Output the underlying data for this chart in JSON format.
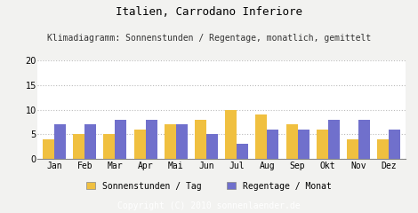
{
  "title": "Italien, Carrodano Inferiore",
  "subtitle": "Klimadiagramm: Sonnenstunden / Regentage, monatlich, gemittelt",
  "months": [
    "Jan",
    "Feb",
    "Mar",
    "Apr",
    "Mai",
    "Jun",
    "Jul",
    "Aug",
    "Sep",
    "Okt",
    "Nov",
    "Dez"
  ],
  "sonnenstunden": [
    4,
    5,
    5,
    6,
    7,
    8,
    10,
    9,
    7,
    6,
    4,
    4
  ],
  "regentage": [
    7,
    7,
    8,
    8,
    7,
    5,
    3,
    6,
    6,
    8,
    8,
    6
  ],
  "bar_color_sonne": "#F0C040",
  "bar_color_regen": "#7070CC",
  "background_color": "#F2F2F0",
  "plot_bg_color": "#FFFFFF",
  "footer_bg_color": "#999999",
  "footer_text": "Copyright (C) 2010 sonnenlaender.de",
  "legend_sonne": "Sonnenstunden / Tag",
  "legend_regen": "Regentage / Monat",
  "ylim": [
    0,
    20
  ],
  "yticks": [
    0,
    5,
    10,
    15,
    20
  ],
  "title_fontsize": 9,
  "subtitle_fontsize": 7,
  "tick_fontsize": 7,
  "legend_fontsize": 7,
  "footer_fontsize": 7
}
